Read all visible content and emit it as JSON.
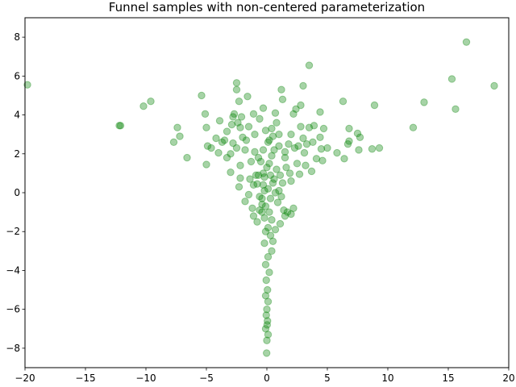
{
  "chart_data": {
    "type": "scatter",
    "title": "Funnel samples with non-centered parameterization",
    "xlabel": "",
    "ylabel": "",
    "xlim": [
      -20,
      20
    ],
    "ylim": [
      -9,
      9
    ],
    "x_ticks": [
      -20,
      -15,
      -10,
      -5,
      0,
      5,
      10,
      15,
      20
    ],
    "x_tick_labels": [
      "−20",
      "−15",
      "−10",
      "−5",
      "0",
      "5",
      "10",
      "15",
      "20"
    ],
    "y_ticks": [
      -8,
      -6,
      -4,
      -2,
      0,
      2,
      4,
      6,
      8
    ],
    "y_tick_labels": [
      "−8",
      "−6",
      "−4",
      "−2",
      "0",
      "2",
      "4",
      "6",
      "8"
    ],
    "grid": false,
    "marker_color": "#008000",
    "marker_alpha": 0.35,
    "points": [
      [
        -19.8,
        5.55
      ],
      [
        16.5,
        7.75
      ],
      [
        18.8,
        5.5
      ],
      [
        15.3,
        5.85
      ],
      [
        15.6,
        4.3
      ],
      [
        13.0,
        4.65
      ],
      [
        12.1,
        3.35
      ],
      [
        9.3,
        2.3
      ],
      [
        8.9,
        4.5
      ],
      [
        8.7,
        2.25
      ],
      [
        7.7,
        2.85
      ],
      [
        7.5,
        3.05
      ],
      [
        7.6,
        2.2
      ],
      [
        6.8,
        3.3
      ],
      [
        6.8,
        2.65
      ],
      [
        6.7,
        2.5
      ],
      [
        6.4,
        1.75
      ],
      [
        6.3,
        4.7
      ],
      [
        5.8,
        2.05
      ],
      [
        4.7,
        3.3
      ],
      [
        4.4,
        4.15
      ],
      [
        4.4,
        2.85
      ],
      [
        4.5,
        2.25
      ],
      [
        4.6,
        1.65
      ],
      [
        4.1,
        1.75
      ],
      [
        3.9,
        3.45
      ],
      [
        3.5,
        3.35
      ],
      [
        3.5,
        6.55
      ],
      [
        3.3,
        2.5
      ],
      [
        3.0,
        5.5
      ],
      [
        2.8,
        4.5
      ],
      [
        2.8,
        3.4
      ],
      [
        2.6,
        2.4
      ],
      [
        2.4,
        4.3
      ],
      [
        2.2,
        4.05
      ],
      [
        2.0,
        3.0
      ],
      [
        1.8,
        2.5
      ],
      [
        1.5,
        1.8
      ],
      [
        1.3,
        4.8
      ],
      [
        1.2,
        5.3
      ],
      [
        1.0,
        3.0
      ],
      [
        0.8,
        3.6
      ],
      [
        0.7,
        4.1
      ],
      [
        0.4,
        3.3
      ],
      [
        0.2,
        2.7
      ],
      [
        -0.3,
        4.35
      ],
      [
        -0.6,
        3.8
      ],
      [
        -1.1,
        4.05
      ],
      [
        -1.5,
        3.4
      ],
      [
        -1.6,
        4.95
      ],
      [
        -2.1,
        3.9
      ],
      [
        -2.2,
        3.35
      ],
      [
        -2.4,
        3.6
      ],
      [
        -2.3,
        4.7
      ],
      [
        -2.5,
        5.65
      ],
      [
        -2.5,
        5.3
      ],
      [
        -2.7,
        4.05
      ],
      [
        -2.8,
        3.9
      ],
      [
        -2.9,
        3.5
      ],
      [
        -3.3,
        3.15
      ],
      [
        -3.9,
        3.7
      ],
      [
        -3.5,
        2.7
      ],
      [
        -4.2,
        2.8
      ],
      [
        -4.6,
        2.3
      ],
      [
        -4.9,
        2.4
      ],
      [
        -5.0,
        3.35
      ],
      [
        -5.1,
        4.05
      ],
      [
        -5.4,
        5.0
      ],
      [
        -5.0,
        1.45
      ],
      [
        -6.6,
        1.8
      ],
      [
        -7.2,
        2.9
      ],
      [
        -7.4,
        3.35
      ],
      [
        -7.7,
        2.6
      ],
      [
        -9.6,
        4.7
      ],
      [
        -10.2,
        4.45
      ],
      [
        -12.2,
        3.45
      ],
      [
        -12.1,
        3.45
      ],
      [
        -3.0,
        2.0
      ],
      [
        -2.5,
        2.3
      ],
      [
        -3.3,
        1.8
      ],
      [
        -2.0,
        2.85
      ],
      [
        -1.7,
        2.7
      ],
      [
        -1.0,
        2.1
      ],
      [
        -0.7,
        1.8
      ],
      [
        -0.3,
        2.2
      ],
      [
        -0.5,
        1.6
      ],
      [
        -1.3,
        1.6
      ],
      [
        -2.2,
        1.4
      ],
      [
        -3.0,
        1.05
      ],
      [
        -2.2,
        0.75
      ],
      [
        -2.3,
        0.3
      ],
      [
        -1.4,
        0.7
      ],
      [
        -0.8,
        0.45
      ],
      [
        -1.5,
        -0.1
      ],
      [
        -0.4,
        -0.6
      ],
      [
        -1.8,
        -0.45
      ],
      [
        -1.2,
        -0.8
      ],
      [
        -1.1,
        -1.2
      ],
      [
        -0.8,
        -1.5
      ],
      [
        -0.9,
        0.9
      ],
      [
        -0.3,
        1.0
      ],
      [
        0.2,
        1.5
      ],
      [
        0.4,
        1.9
      ],
      [
        0.6,
        2.2
      ],
      [
        0.8,
        1.2
      ],
      [
        1.1,
        0.9
      ],
      [
        1.3,
        0.5
      ],
      [
        1.6,
        1.3
      ],
      [
        1.9,
        1.0
      ],
      [
        2.0,
        0.6
      ],
      [
        2.5,
        1.5
      ],
      [
        2.7,
        0.95
      ],
      [
        3.2,
        1.4
      ],
      [
        3.7,
        1.1
      ],
      [
        3.0,
        2.8
      ],
      [
        1.5,
        2.1
      ],
      [
        0.9,
        -0.5
      ],
      [
        1.2,
        -0.2
      ],
      [
        1.5,
        -1.2
      ],
      [
        1.1,
        -1.6
      ],
      [
        1.4,
        -0.9
      ],
      [
        2.0,
        -1.1
      ],
      [
        1.7,
        -1.0
      ],
      [
        2.2,
        -0.8
      ],
      [
        0.7,
        -1.9
      ],
      [
        0.5,
        -2.5
      ],
      [
        0.4,
        -3.0
      ],
      [
        -0.6,
        -0.9
      ],
      [
        -0.2,
        -1.3
      ],
      [
        0.1,
        -1.8
      ],
      [
        -0.1,
        -2.0
      ],
      [
        0.3,
        -2.2
      ],
      [
        -0.2,
        -2.6
      ],
      [
        0.1,
        -3.3
      ],
      [
        -0.1,
        -3.7
      ],
      [
        0.2,
        -4.1
      ],
      [
        -0.05,
        -4.5
      ],
      [
        0.05,
        -5.0
      ],
      [
        -0.1,
        -5.3
      ],
      [
        0.1,
        -5.6
      ],
      [
        0.0,
        -6.0
      ],
      [
        -0.05,
        -6.3
      ],
      [
        0.05,
        -6.6
      ],
      [
        -0.1,
        -7.0
      ],
      [
        0.1,
        -7.3
      ],
      [
        0.0,
        -7.6
      ],
      [
        -0.02,
        -8.25
      ],
      [
        0.02,
        -6.8
      ],
      [
        0.1,
        0.2
      ],
      [
        -0.2,
        0.1
      ],
      [
        0.3,
        -0.3
      ],
      [
        -0.3,
        0.4
      ],
      [
        0.5,
        0.5
      ],
      [
        -0.6,
        -0.2
      ],
      [
        0.7,
        0.0
      ],
      [
        -0.1,
        -0.7
      ],
      [
        0.2,
        -1.0
      ],
      [
        0.4,
        -1.4
      ],
      [
        -0.4,
        -1.0
      ],
      [
        -0.2,
        0.8
      ],
      [
        0.0,
        1.3
      ],
      [
        0.1,
        2.6
      ],
      [
        -0.1,
        3.2
      ],
      [
        0.5,
        2.9
      ],
      [
        1.0,
        2.4
      ],
      [
        -2.8,
        2.55
      ],
      [
        -4.0,
        2.05
      ],
      [
        -3.7,
        2.6
      ],
      [
        -1.8,
        2.2
      ],
      [
        -1.0,
        3.0
      ],
      [
        2.3,
        2.3
      ],
      [
        3.1,
        2.05
      ],
      [
        5.0,
        2.3
      ],
      [
        3.8,
        2.6
      ],
      [
        0.6,
        0.7
      ],
      [
        -0.7,
        0.9
      ],
      [
        -1.1,
        0.4
      ],
      [
        1.0,
        0.1
      ],
      [
        -0.4,
        -0.3
      ],
      [
        0.3,
        0.9
      ]
    ]
  }
}
